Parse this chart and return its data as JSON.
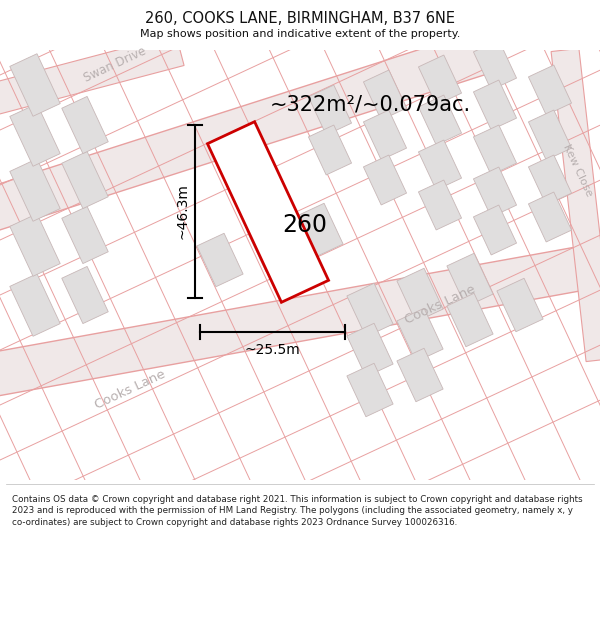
{
  "title": "260, COOKS LANE, BIRMINGHAM, B37 6NE",
  "subtitle": "Map shows position and indicative extent of the property.",
  "area_text": "~322m²/~0.079ac.",
  "label_260": "260",
  "dim_height": "~46.3m",
  "dim_width": "~25.5m",
  "footer": "Contains OS data © Crown copyright and database right 2021. This information is subject to Crown copyright and database rights 2023 and is reproduced with the permission of HM Land Registry. The polygons (including the associated geometry, namely x, y co-ordinates) are subject to Crown copyright and database rights 2023 Ordnance Survey 100026316.",
  "map_bg": "#f7f4f4",
  "road_line_color": "#e8a0a0",
  "road_fill_color": "#f0e8e8",
  "block_fill": "#e0dede",
  "block_stroke": "#c8b8b8",
  "plot_stroke": "#cc0000",
  "plot_fill": "#ffffff",
  "dim_line_color": "#000000",
  "street_label_color": "#b8b0b0",
  "swan_drive_label": "Swan Drive",
  "cooks_lane_label1": "Cooks Lane",
  "cooks_lane_label2": "Cooks Lane",
  "kew_close_label": "Kew Close",
  "title_color": "#111111",
  "footer_color": "#222222",
  "map_road_alpha": 0.7
}
